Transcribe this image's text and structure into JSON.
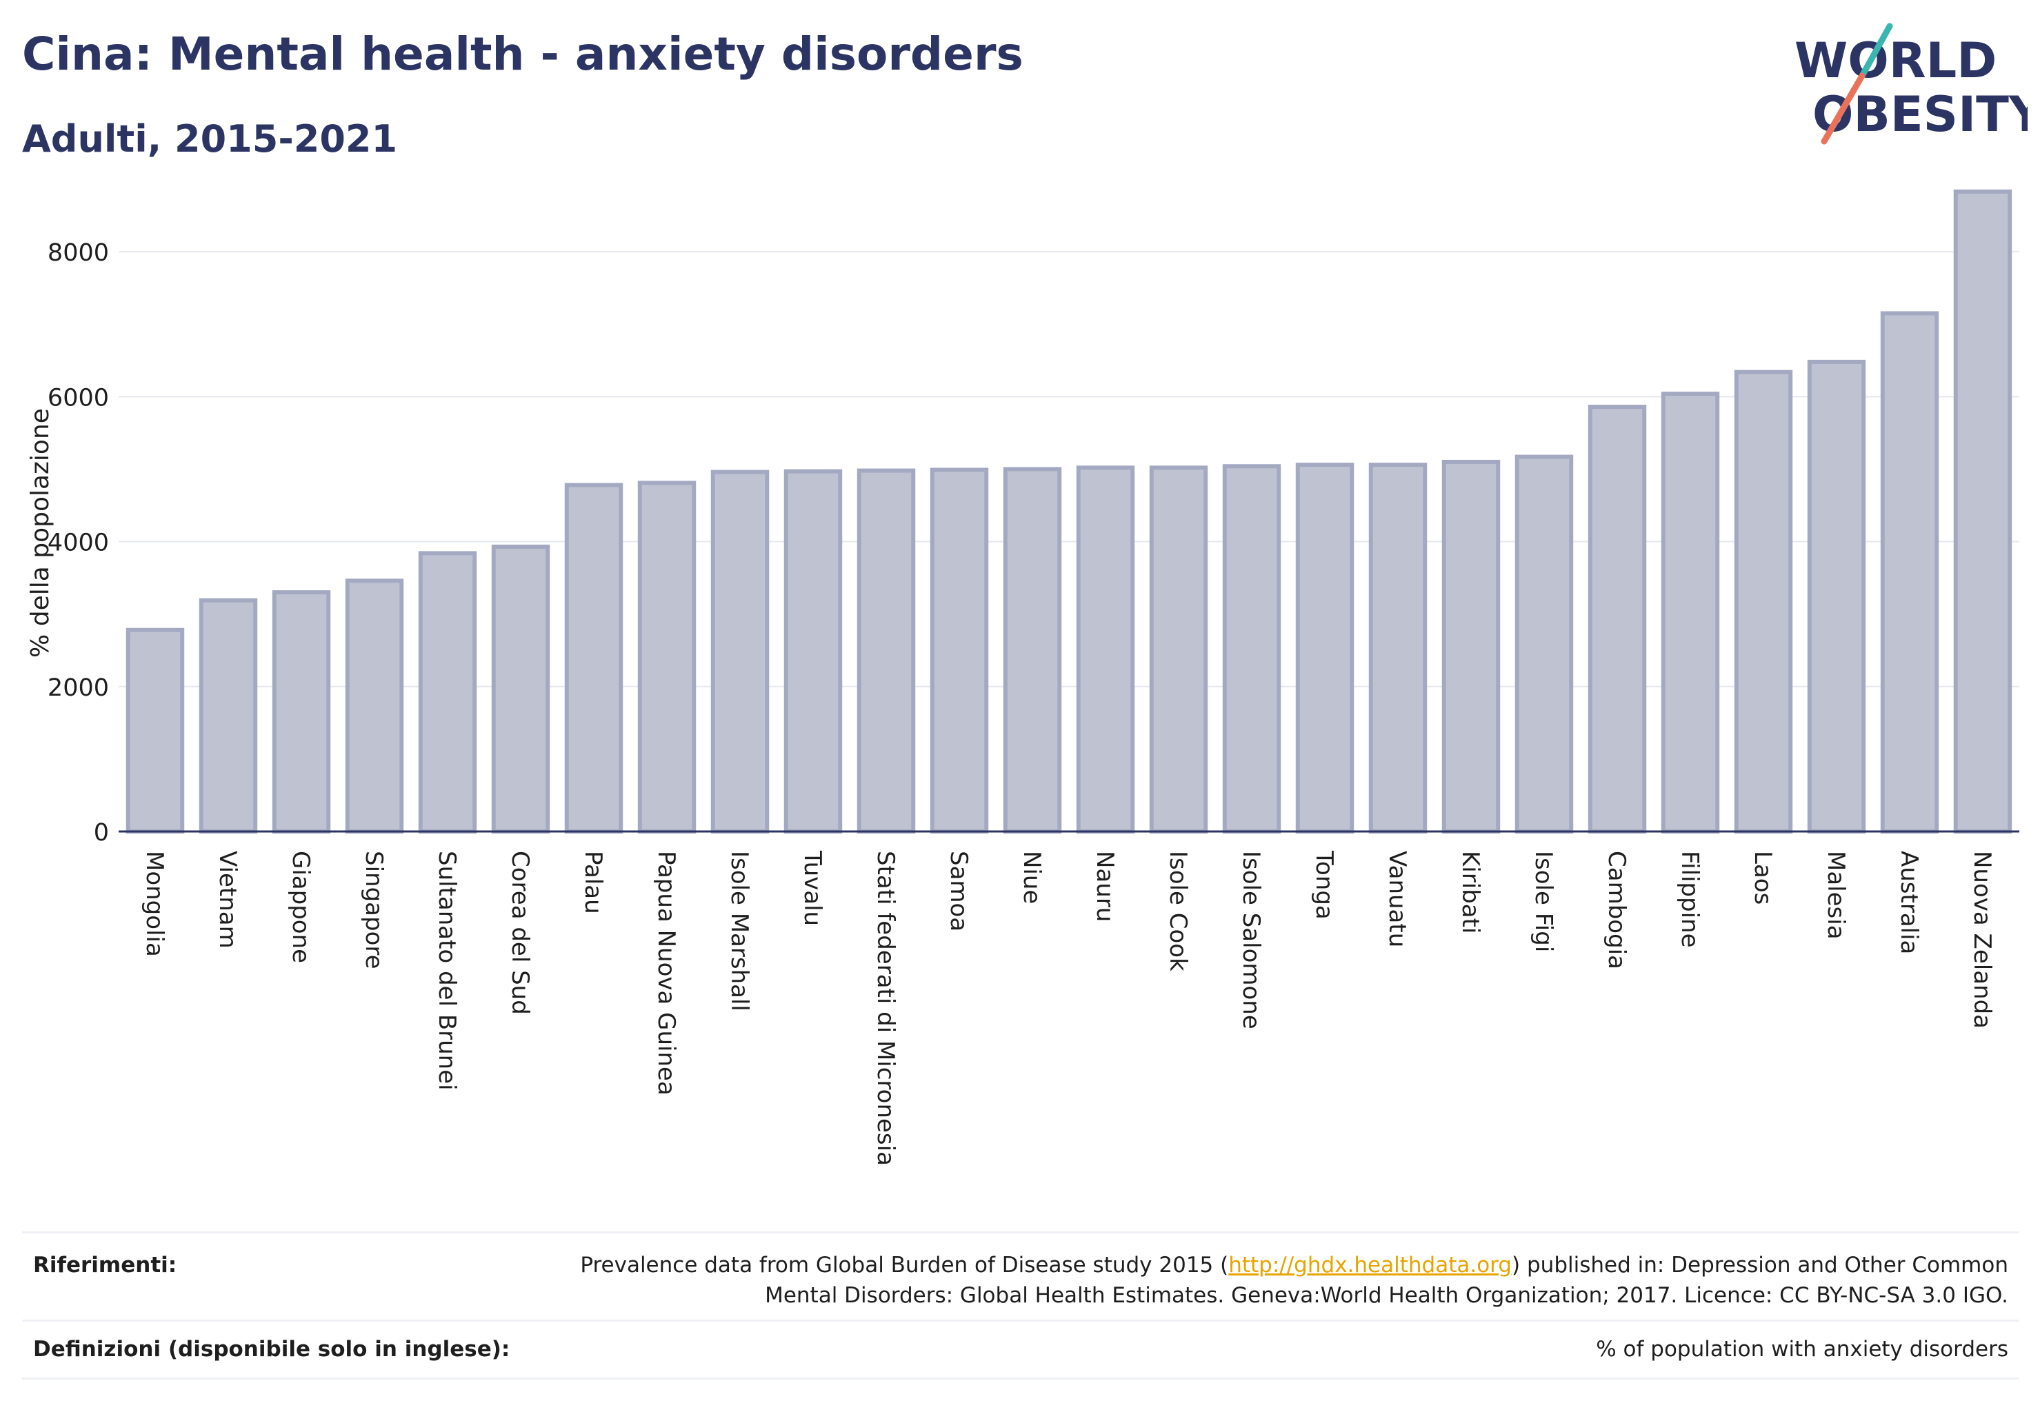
{
  "header": {
    "title": "Cina: Mental health - anxiety disorders",
    "subtitle": "Adulti, 2015-2021"
  },
  "logo": {
    "line1": "WORLD",
    "line2": "OBESITY",
    "colors": {
      "text": "#2b3463",
      "slash_top": "#3bb5b0",
      "slash_bottom": "#e8735a"
    }
  },
  "chart_data": {
    "type": "bar",
    "ylabel": "% della popolazione",
    "xlabel": "",
    "ylim": [
      0,
      9000
    ],
    "yticks": [
      0,
      2000,
      4000,
      6000,
      8000
    ],
    "grid": true,
    "bar_fill": "#bfc3d1",
    "bar_stroke": "#a4a9c2",
    "categories": [
      "Mongolia",
      "Vietnam",
      "Giappone",
      "Singapore",
      "Sultanato del Brunei",
      "Corea del Sud",
      "Palau",
      "Papua Nuova Guinea",
      "Isole Marshall",
      "Tuvalu",
      "Stati federati di Micronesia",
      "Samoa",
      "Niue",
      "Nauru",
      "Isole Cook",
      "Isole Salomone",
      "Tonga",
      "Vanuatu",
      "Kiribati",
      "Isole Figi",
      "Cambogia",
      "Filippine",
      "Laos",
      "Malesia",
      "Australia",
      "Nuova Zelanda"
    ],
    "values": [
      2780,
      3190,
      3300,
      3460,
      3840,
      3930,
      4780,
      4810,
      4960,
      4970,
      4980,
      4990,
      5000,
      5020,
      5020,
      5040,
      5060,
      5060,
      5100,
      5170,
      5860,
      6040,
      6340,
      6480,
      7150,
      8830
    ]
  },
  "footer": {
    "references_label": "Riferimenti:",
    "references_text_before": "Prevalence data from Global Burden of Disease study 2015 (",
    "references_link": "http://ghdx.healthdata.org",
    "references_text_after": ") published in: Depression and Other Common",
    "references_text_line2": "Mental Disorders: Global Health Estimates. Geneva:World Health Organization; 2017. Licence: CC BY-NC-SA 3.0 IGO.",
    "definitions_label": "Definizioni (disponibile solo in inglese):",
    "definitions_text": "% of population with anxiety disorders"
  }
}
